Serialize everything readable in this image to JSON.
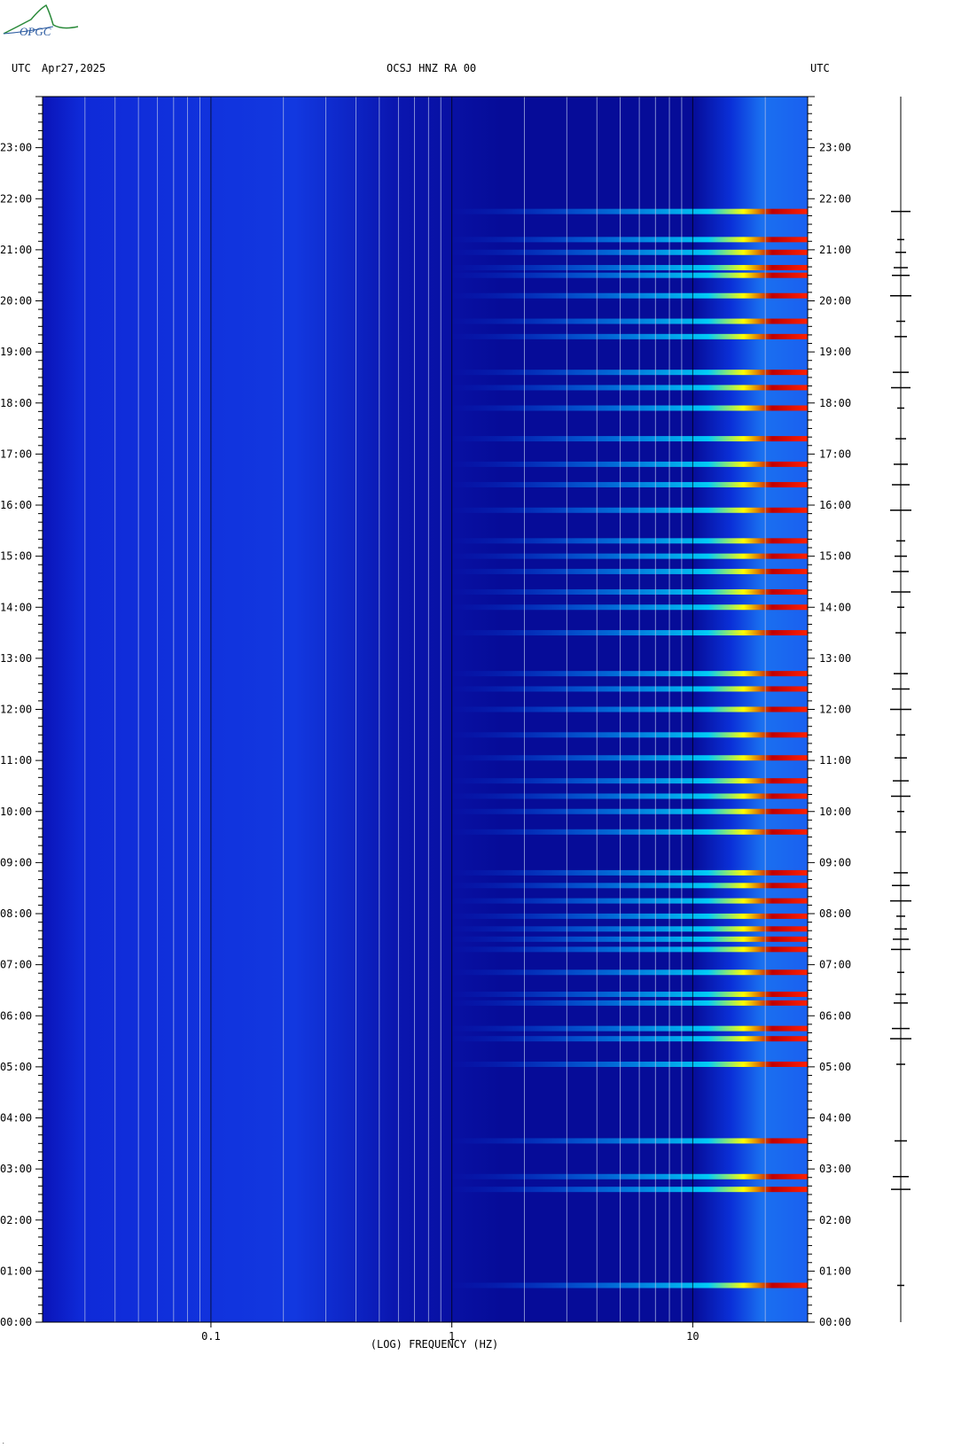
{
  "header": {
    "left_tz": "UTC",
    "date": "Apr27,2025",
    "station": "OCSJ HNZ RA 00",
    "right_tz": "UTC"
  },
  "logo": {
    "text": "OPGC"
  },
  "chart_data": {
    "type": "heatmap",
    "title": "OCSJ HNZ RA 00",
    "xlabel": "(LOG) FREQUENCY (HZ)",
    "x_scale": "log",
    "xlim": [
      0.02,
      30
    ],
    "x_ticks": [
      {
        "value": 0.1,
        "label": "0.1"
      },
      {
        "value": 1,
        "label": "1"
      },
      {
        "value": 10,
        "label": "10"
      }
    ],
    "ylim_hours": [
      0,
      24
    ],
    "y_ticks": [
      "00:00",
      "01:00",
      "02:00",
      "03:00",
      "04:00",
      "05:00",
      "06:00",
      "07:00",
      "08:00",
      "09:00",
      "10:00",
      "11:00",
      "12:00",
      "13:00",
      "14:00",
      "15:00",
      "16:00",
      "17:00",
      "18:00",
      "19:00",
      "20:00",
      "21:00",
      "22:00",
      "23:00"
    ],
    "y_axis_sides": [
      "left",
      "right"
    ],
    "grid": true,
    "colormap": [
      "#00008b",
      "#0000ff",
      "#00a0ff",
      "#00ffff",
      "#ffff00",
      "#ff0000",
      "#8b0000"
    ],
    "background_color": "#0a18c8",
    "events_hours": [
      0.72,
      2.6,
      2.85,
      3.55,
      5.05,
      5.55,
      5.75,
      6.25,
      6.42,
      6.85,
      7.3,
      7.5,
      7.7,
      7.95,
      8.25,
      8.55,
      8.8,
      9.6,
      10.0,
      10.3,
      10.6,
      11.05,
      11.5,
      12.0,
      12.4,
      12.7,
      13.5,
      14.0,
      14.3,
      14.7,
      15.0,
      15.3,
      15.9,
      16.4,
      16.8,
      17.3,
      17.9,
      18.3,
      18.6,
      19.3,
      19.6,
      20.1,
      20.5,
      20.65,
      20.95,
      21.2,
      21.75
    ]
  }
}
